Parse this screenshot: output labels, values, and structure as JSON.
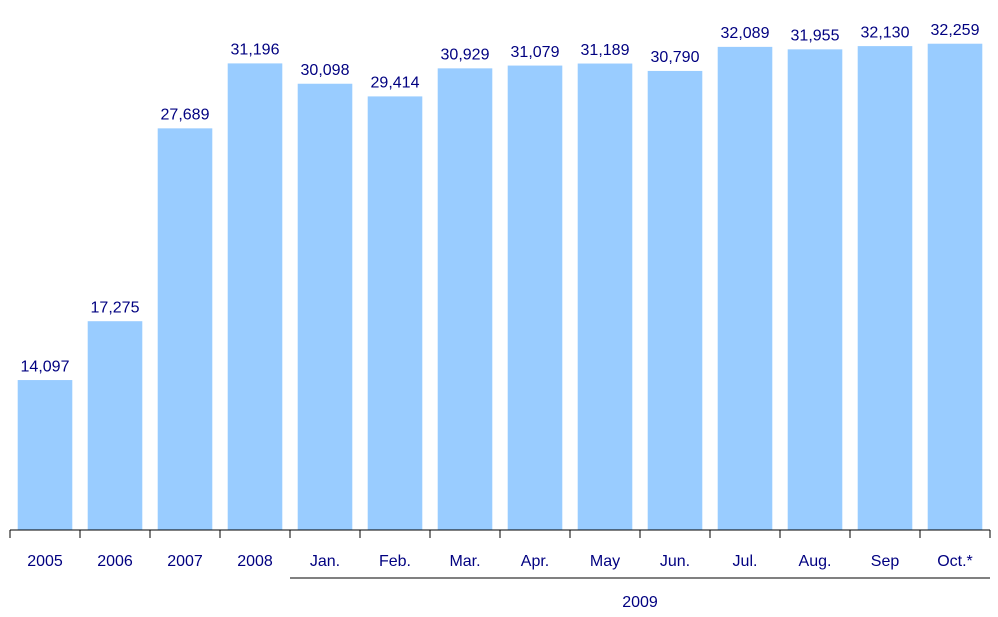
{
  "chart_data": {
    "type": "bar",
    "categories": [
      "2005",
      "2006",
      "2007",
      "2008",
      "Jan.",
      "Feb.",
      "Mar.",
      "Apr.",
      "May",
      "Jun.",
      "Jul.",
      "Aug.",
      "Sep",
      "Oct.*"
    ],
    "values": [
      14097,
      17275,
      27689,
      31196,
      30098,
      29414,
      30929,
      31079,
      31189,
      30790,
      32089,
      31955,
      32130,
      32259
    ],
    "value_labels": [
      "14,097",
      "17,275",
      "27,689",
      "31,196",
      "30,098",
      "29,414",
      "30,929",
      "31,079",
      "31,189",
      "30,790",
      "32,089",
      "31,955",
      "32,130",
      "32,259"
    ],
    "color": "#99ccff",
    "ylim": [
      6000,
      33000
    ],
    "groups": [
      {
        "label": "2009",
        "first": 4,
        "last": 13
      }
    ]
  }
}
